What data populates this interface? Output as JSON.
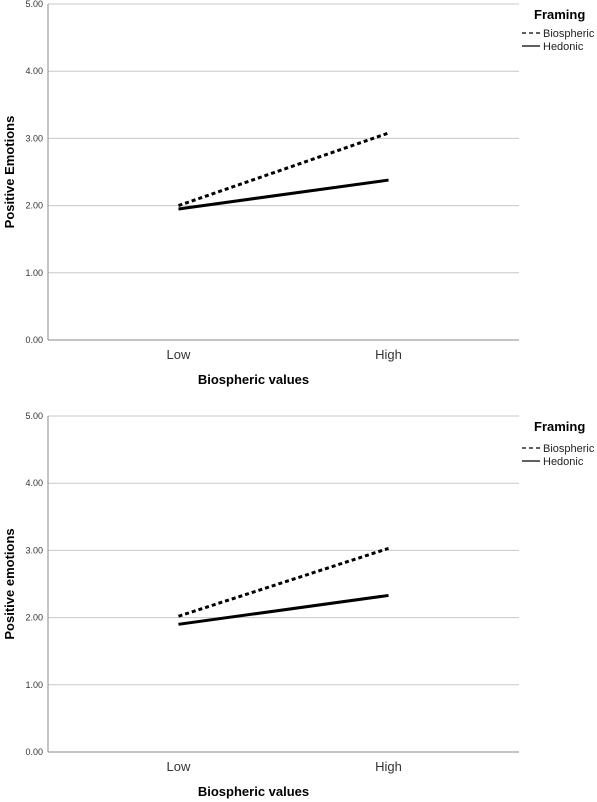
{
  "chart_data": [
    {
      "type": "line",
      "xlabel": "Biospheric values",
      "ylabel": "Positive Emotions",
      "categories": [
        "Low",
        "High"
      ],
      "ylim": [
        0,
        5
      ],
      "yticks": [
        "0.00",
        "1.00",
        "2.00",
        "3.00",
        "4.00",
        "5.00"
      ],
      "grid": true,
      "legend": {
        "title": "Framing",
        "placement": "top-right"
      },
      "series": [
        {
          "name": "Biospheric",
          "values": [
            2.0,
            3.08
          ],
          "style": "dashed",
          "color": "#000000"
        },
        {
          "name": "Hedonic",
          "values": [
            1.95,
            2.38
          ],
          "style": "solid",
          "color": "#000000"
        }
      ]
    },
    {
      "type": "line",
      "xlabel": "Biospheric values",
      "ylabel": "Positive emotions",
      "categories": [
        "Low",
        "High"
      ],
      "ylim": [
        0,
        5
      ],
      "yticks": [
        "0.00",
        "1.00",
        "2.00",
        "3.00",
        "4.00",
        "5.00"
      ],
      "grid": true,
      "legend": {
        "title": "Framing",
        "placement": "top-right"
      },
      "series": [
        {
          "name": "Biospheric",
          "values": [
            2.02,
            3.03
          ],
          "style": "dashed",
          "color": "#000000"
        },
        {
          "name": "Hedonic",
          "values": [
            1.9,
            2.33
          ],
          "style": "solid",
          "color": "#000000"
        }
      ]
    }
  ]
}
